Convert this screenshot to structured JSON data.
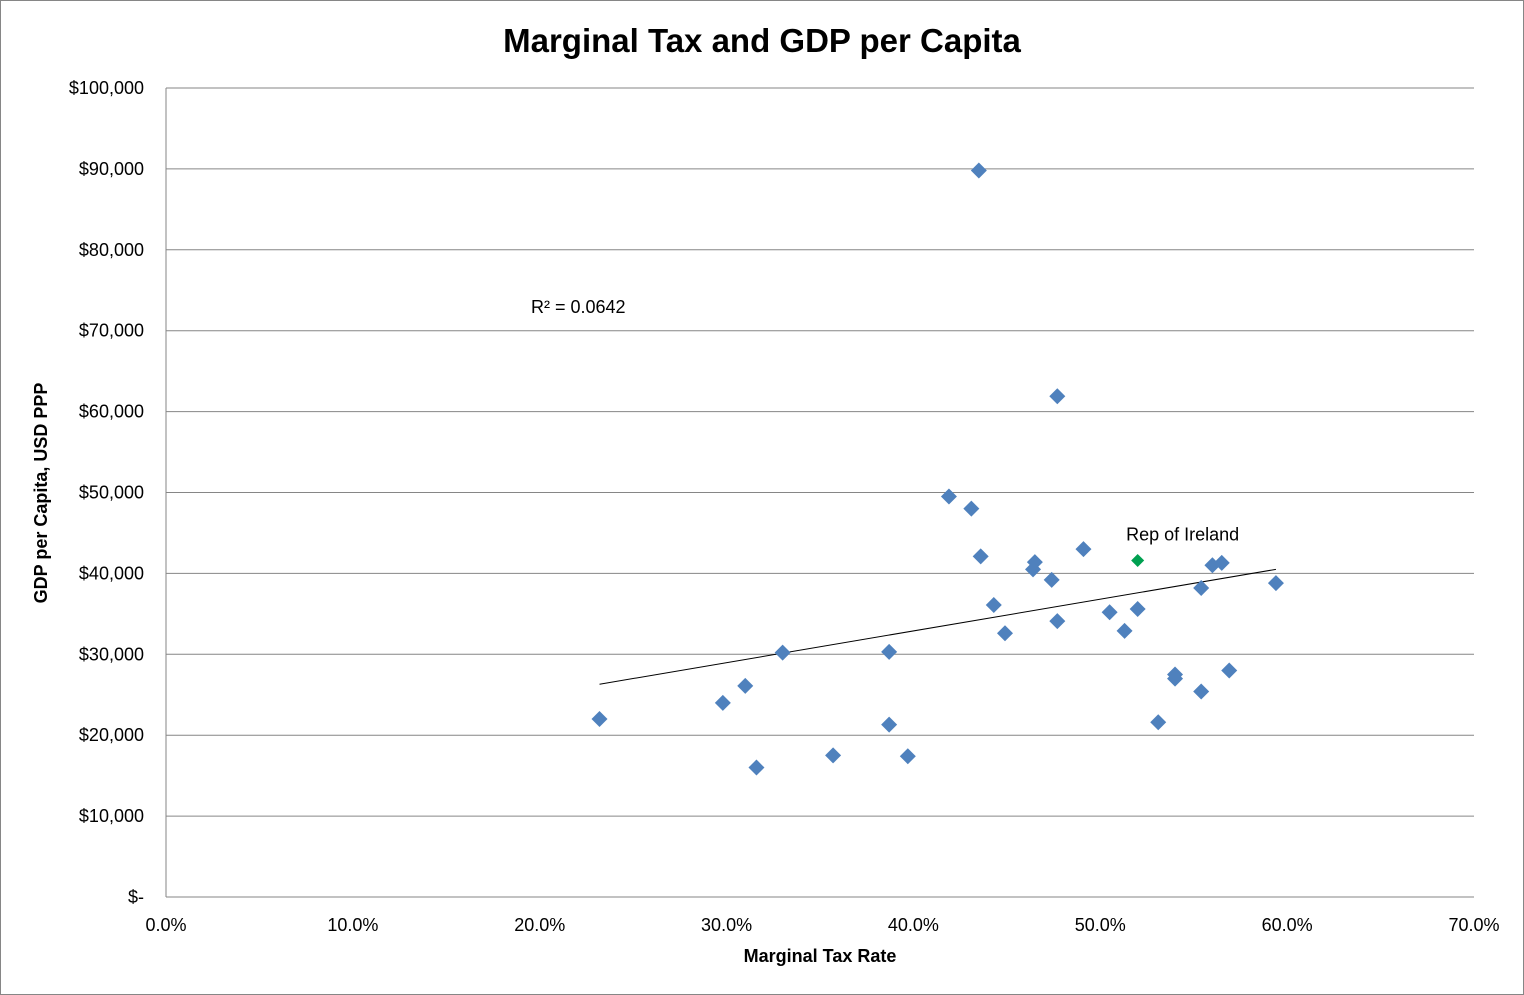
{
  "chart_data": {
    "type": "scatter",
    "title": "Marginal Tax and GDP per Capita",
    "xlabel": "Marginal Tax Rate",
    "ylabel": "GDP per Capita, USD PPP",
    "xlim": [
      0,
      0.7
    ],
    "ylim": [
      0,
      100000
    ],
    "x_ticks": [
      0,
      0.1,
      0.2,
      0.3,
      0.4,
      0.5,
      0.6,
      0.7
    ],
    "x_tick_labels": [
      "0.0%",
      "10.0%",
      "20.0%",
      "30.0%",
      "40.0%",
      "50.0%",
      "60.0%",
      "70.0%"
    ],
    "y_ticks": [
      0,
      10000,
      20000,
      30000,
      40000,
      50000,
      60000,
      70000,
      80000,
      90000,
      100000
    ],
    "y_tick_labels": [
      "$-",
      "$10,000",
      "$20,000",
      "$30,000",
      "$40,000",
      "$50,000",
      "$60,000",
      "$70,000",
      "$80,000",
      "$90,000",
      "$100,000"
    ],
    "grid": "horizontal",
    "series": [
      {
        "color": "#4F81BD",
        "marker": "diamond",
        "points": [
          {
            "x": 0.232,
            "y": 22000
          },
          {
            "x": 0.298,
            "y": 24000
          },
          {
            "x": 0.31,
            "y": 26100
          },
          {
            "x": 0.316,
            "y": 16000
          },
          {
            "x": 0.33,
            "y": 30200
          },
          {
            "x": 0.357,
            "y": 17500
          },
          {
            "x": 0.387,
            "y": 30300
          },
          {
            "x": 0.387,
            "y": 21300
          },
          {
            "x": 0.397,
            "y": 17400
          },
          {
            "x": 0.419,
            "y": 49500
          },
          {
            "x": 0.431,
            "y": 48000
          },
          {
            "x": 0.435,
            "y": 89800
          },
          {
            "x": 0.436,
            "y": 42100
          },
          {
            "x": 0.443,
            "y": 36100
          },
          {
            "x": 0.449,
            "y": 32600
          },
          {
            "x": 0.464,
            "y": 40500
          },
          {
            "x": 0.465,
            "y": 41400
          },
          {
            "x": 0.474,
            "y": 39200
          },
          {
            "x": 0.477,
            "y": 61900
          },
          {
            "x": 0.477,
            "y": 34100
          },
          {
            "x": 0.491,
            "y": 43000
          },
          {
            "x": 0.505,
            "y": 35200
          },
          {
            "x": 0.513,
            "y": 32900
          },
          {
            "x": 0.52,
            "y": 35600
          },
          {
            "x": 0.531,
            "y": 21600
          },
          {
            "x": 0.54,
            "y": 27500
          },
          {
            "x": 0.54,
            "y": 27000
          },
          {
            "x": 0.554,
            "y": 38200
          },
          {
            "x": 0.554,
            "y": 25400
          },
          {
            "x": 0.56,
            "y": 41000
          },
          {
            "x": 0.565,
            "y": 41300
          },
          {
            "x": 0.569,
            "y": 28000
          },
          {
            "x": 0.594,
            "y": 38800
          }
        ]
      },
      {
        "color": "#00A050",
        "marker": "diamond",
        "points": [
          {
            "x": 0.52,
            "y": 41600,
            "label": "Rep of Ireland"
          }
        ]
      }
    ],
    "trendline": {
      "type": "linear",
      "color": "#000000",
      "x_start": 0.232,
      "y_start": 26300,
      "x_end": 0.594,
      "y_end": 40500,
      "r_squared_label": "R² = 0.0642"
    }
  }
}
